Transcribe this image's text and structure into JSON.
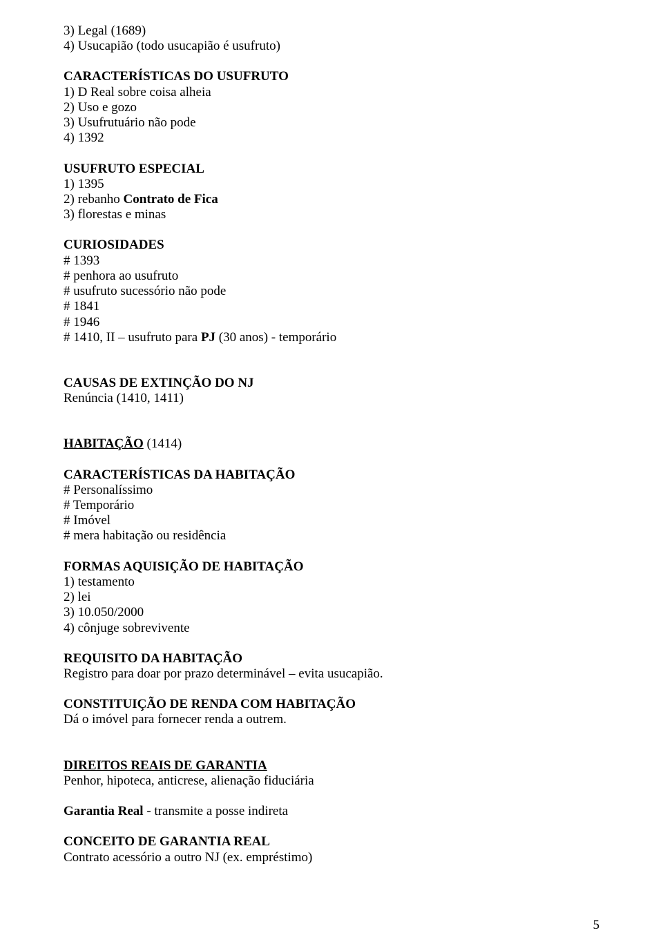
{
  "font": {
    "family": "Times New Roman",
    "body_size_pt": 14,
    "color": "#000000",
    "background": "#ffffff"
  },
  "page_number": "5",
  "sections": [
    {
      "lines": [
        {
          "text": "3) Legal (1689)",
          "bold": false
        },
        {
          "text": "4) Usucapião (todo usucapião é usufruto)",
          "bold": false
        }
      ]
    },
    {
      "lines": [
        {
          "text": "CARACTERÍSTICAS DO USUFRUTO",
          "bold": true
        },
        {
          "text": "1) D Real sobre coisa alheia",
          "bold": false
        },
        {
          "text": "2) Uso e gozo",
          "bold": false
        },
        {
          "text": "3) Usufrutuário não pode",
          "bold": false
        },
        {
          "text": "4) 1392",
          "bold": false
        }
      ]
    },
    {
      "lines": [
        {
          "text": "USUFRUTO ESPECIAL",
          "bold": true
        },
        {
          "text": "1) 1395",
          "bold": false
        },
        {
          "parts": [
            {
              "text": "2) rebanho ",
              "bold": false
            },
            {
              "text": "Contrato de Fica",
              "bold": true
            }
          ]
        },
        {
          "text": "3) florestas e minas",
          "bold": false
        }
      ]
    },
    {
      "lines": [
        {
          "text": "CURIOSIDADES",
          "bold": true
        },
        {
          "text": "# 1393",
          "bold": false
        },
        {
          "text": "# penhora ao usufruto",
          "bold": false
        },
        {
          "text": "# usufruto sucessório não pode",
          "bold": false
        },
        {
          "text": "# 1841",
          "bold": false
        },
        {
          "text": "# 1946",
          "bold": false
        },
        {
          "parts": [
            {
              "text": "# 1410, II – usufruto para ",
              "bold": false
            },
            {
              "text": "PJ",
              "bold": true
            },
            {
              "text": " (30 anos) - temporário",
              "bold": false
            }
          ]
        }
      ]
    },
    {
      "gap": "med",
      "lines": [
        {
          "text": "CAUSAS DE EXTINÇÃO DO NJ",
          "bold": true
        },
        {
          "text": "Renúncia (1410, 1411)",
          "bold": false
        }
      ]
    },
    {
      "gap": "med",
      "lines": [
        {
          "text": "HABITAÇÃO",
          "bold": true,
          "underline": true,
          "suffix": " (1414)"
        }
      ]
    },
    {
      "lines": [
        {
          "text": "CARACTERÍSTICAS DA HABITAÇÃO",
          "bold": true
        },
        {
          "text": "# Personalíssimo",
          "bold": false
        },
        {
          "text": "# Temporário",
          "bold": false
        },
        {
          "text": "# Imóvel",
          "bold": false
        },
        {
          "text": "# mera habitação ou residência",
          "bold": false
        }
      ]
    },
    {
      "lines": [
        {
          "text": "FORMAS AQUISIÇÃO DE HABITAÇÃO",
          "bold": true
        },
        {
          "text": "1) testamento",
          "bold": false
        },
        {
          "text": "2) lei",
          "bold": false
        },
        {
          "text": "3) 10.050/2000",
          "bold": false
        },
        {
          "text": "4) cônjuge sobrevivente",
          "bold": false
        }
      ]
    },
    {
      "lines": [
        {
          "text": "REQUISITO DA HABITAÇÃO",
          "bold": true
        },
        {
          "text": "Registro para doar por prazo determinável – evita usucapião.",
          "bold": false
        }
      ]
    },
    {
      "lines": [
        {
          "text": "CONSTITUIÇÃO DE RENDA COM HABITAÇÃO",
          "bold": true
        },
        {
          "text": "Dá o imóvel para fornecer renda a outrem.",
          "bold": false
        }
      ]
    },
    {
      "gap": "med",
      "lines": [
        {
          "text": "DIREITOS REAIS DE GARANTIA",
          "bold": true,
          "underline": true
        },
        {
          "text": "Penhor, hipoteca, anticrese, alienação fiduciária",
          "bold": false
        }
      ]
    },
    {
      "lines": [
        {
          "parts": [
            {
              "text": "Garantia Real",
              "bold": true
            },
            {
              "text": " - transmite a posse indireta",
              "bold": false
            }
          ]
        }
      ]
    },
    {
      "lines": [
        {
          "text": "CONCEITO DE GARANTIA REAL",
          "bold": true
        },
        {
          "text": "Contrato acessório a outro NJ (ex. empréstimo)",
          "bold": false
        }
      ]
    }
  ]
}
